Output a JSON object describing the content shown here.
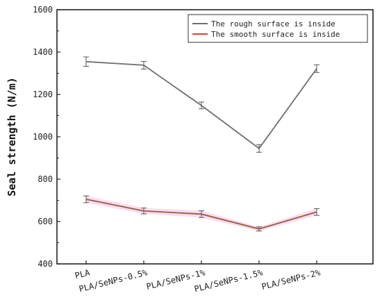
{
  "chart_data": {
    "type": "line",
    "ylabel": "Seal strength (N/m)",
    "xlabel": "",
    "ylim": [
      400,
      1600
    ],
    "yticks": [
      400,
      600,
      800,
      1000,
      1200,
      1400,
      1600
    ],
    "categories": [
      "PLA",
      "PLA/SeNPs-0.5%",
      "PLA/SeNPs-1%",
      "PLA/SeNPs-1.5%",
      "PLA/SeNPs-2%"
    ],
    "legend_position": "top-right",
    "grid": false,
    "series": [
      {
        "name": "The rough surface is inside",
        "color": "#6e6e6e",
        "values": [
          1355,
          1338,
          1148,
          945,
          1322
        ],
        "errors": [
          22,
          18,
          16,
          18,
          18
        ]
      },
      {
        "name": "The smooth surface is inside",
        "color": "#e8393a",
        "line_color": "#9b5a38",
        "band_color": "#f6d8f2",
        "values": [
          705,
          650,
          635,
          565,
          645
        ],
        "errors": [
          16,
          14,
          16,
          10,
          16
        ]
      }
    ]
  }
}
